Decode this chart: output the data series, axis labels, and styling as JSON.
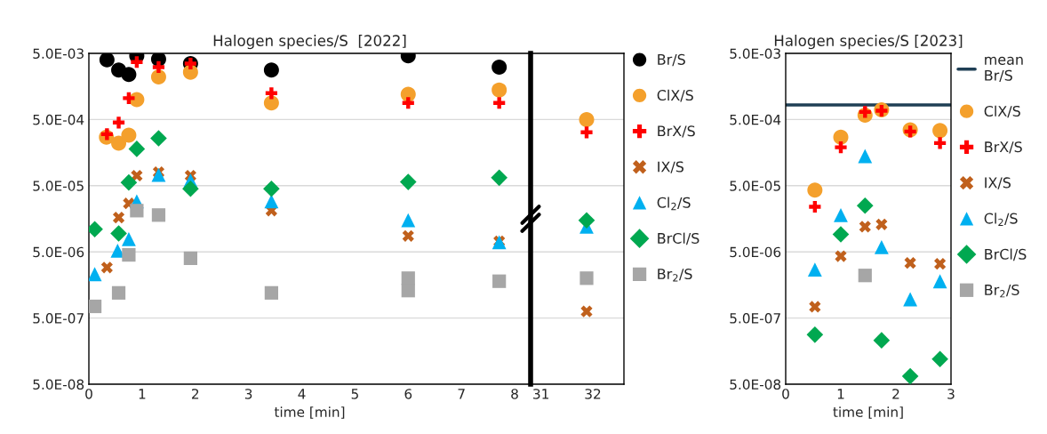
{
  "chart_data": [
    {
      "type": "scatter",
      "title": "Halogen species/S  [2022]",
      "xlabel": "time [min]",
      "log": "y",
      "grid": "y",
      "xlim": [
        0,
        8.3
      ],
      "xticks": [
        0,
        1,
        2,
        3,
        4,
        5,
        6,
        7,
        8
      ],
      "ylim": [
        5e-08,
        0.005
      ],
      "yticks": [
        {
          "value": 5e-08,
          "label": "5.0E-08"
        },
        {
          "value": 5e-07,
          "label": "5.0E-07"
        },
        {
          "value": 5e-06,
          "label": "5.0E-06"
        },
        {
          "value": 5e-05,
          "label": "5.0E-05"
        },
        {
          "value": 0.0005,
          "label": "5.0E-04"
        },
        {
          "value": 0.005,
          "label": "5.0E-03"
        }
      ],
      "series": [
        {
          "color": "#000000",
          "marker": "circle",
          "x": [
            0.34,
            0.56,
            0.75,
            0.9,
            1.31,
            1.91,
            3.43,
            6.0,
            7.71
          ],
          "values": [
            0.004,
            0.0028,
            0.0024,
            0.0046,
            0.0041,
            0.0035,
            0.0028,
            0.0046,
            0.0031
          ]
        },
        {
          "color": "#f4a02c",
          "marker": "circle",
          "x": [
            0.33,
            0.56,
            0.75,
            0.9,
            1.31,
            1.91,
            3.43,
            6.0,
            7.71
          ],
          "values": [
            0.00027,
            0.00022,
            0.00029,
            0.001,
            0.0022,
            0.0026,
            0.00089,
            0.0012,
            0.0014
          ]
        },
        {
          "color": "#ff0000",
          "marker": "plus",
          "x": [
            0.34,
            0.56,
            0.75,
            0.9,
            1.31,
            1.91,
            3.43,
            6.0,
            7.71
          ],
          "values": [
            0.0003,
            0.00045,
            0.00105,
            0.0037,
            0.0031,
            0.0035,
            0.00125,
            0.00089,
            0.00089
          ]
        },
        {
          "color": "#c0601c",
          "marker": "cross",
          "x": [
            0.34,
            0.56,
            0.75,
            0.9,
            1.31,
            1.91,
            3.43,
            6.0,
            7.71
          ],
          "values": [
            2.9e-06,
            1.65e-05,
            2.7e-05,
            7.1e-05,
            8e-05,
            7.1e-05,
            2.1e-05,
            8.7e-06,
            7.2e-06
          ]
        },
        {
          "color": "#00b0f0",
          "marker": "triangle",
          "x": [
            0.11,
            0.54,
            0.75,
            0.9,
            1.31,
            1.91,
            3.43,
            6.0,
            7.71
          ],
          "values": [
            2.3e-06,
            5.2e-06,
            7.8e-06,
            2.9e-05,
            7.3e-05,
            6e-05,
            2.9e-05,
            1.5e-05,
            7e-06
          ]
        },
        {
          "color": "#00a850",
          "marker": "diamond",
          "x": [
            0.11,
            0.56,
            0.75,
            0.9,
            1.31,
            1.91,
            3.43,
            6.0,
            7.71
          ],
          "values": [
            1.1e-05,
            9.5e-06,
            5.6e-05,
            0.00018,
            0.00026,
            4.5e-05,
            4.5e-05,
            5.7e-05,
            6.6e-05
          ]
        },
        {
          "color": "#a6a6a6",
          "marker": "square",
          "x": [
            0.11,
            0.56,
            0.75,
            0.9,
            1.31,
            1.91,
            3.43,
            6.0,
            6.0,
            7.71
          ],
          "values": [
            7.5e-07,
            1.2e-06,
            4.5e-06,
            2.1e-05,
            1.8e-05,
            4e-06,
            1.2e-06,
            2e-06,
            1.3e-06,
            1.8e-06
          ]
        }
      ]
    },
    {
      "type": "scatter",
      "log": "y",
      "grid": "y",
      "tick_labels": "x",
      "legend": "right",
      "xlim": [
        30.8,
        32.6
      ],
      "xticks": [
        31,
        32
      ],
      "ylim": [
        5e-08,
        0.005
      ],
      "yticks": [
        5e-08,
        5e-07,
        5e-06,
        5e-05,
        0.0005,
        0.005
      ],
      "series": [
        {
          "name": "Br/S",
          "color": "#000000",
          "marker": "circle"
        },
        {
          "name": "ClX/S",
          "color": "#f4a02c",
          "marker": "circle",
          "x": [
            31.88
          ],
          "values": [
            0.0005
          ]
        },
        {
          "name": "BrX/S",
          "color": "#ff0000",
          "marker": "plus",
          "x": [
            31.88
          ],
          "values": [
            0.00032
          ]
        },
        {
          "name": "IX/S",
          "color": "#c0601c",
          "marker": "cross",
          "x": [
            31.88
          ],
          "values": [
            6.3e-07
          ]
        },
        {
          "name": "Cl$_{2}$/S",
          "color": "#00b0f0",
          "marker": "triangle",
          "x": [
            31.88
          ],
          "values": [
            1.2e-05
          ]
        },
        {
          "name": "BrCl/S",
          "color": "#00a850",
          "marker": "diamond",
          "x": [
            31.88
          ],
          "values": [
            1.5e-05
          ]
        },
        {
          "name": "Br$_{2}$/S",
          "color": "#a6a6a6",
          "marker": "square",
          "x": [
            31.88
          ],
          "values": [
            2e-06
          ]
        }
      ]
    },
    {
      "type": "scatter",
      "title": "Halogen species/S [2023]",
      "xlabel": "time [min]",
      "log": "y",
      "grid": "y",
      "legend": "right",
      "xlim": [
        0,
        3
      ],
      "xticks": [
        0,
        1,
        2,
        3
      ],
      "ylim": [
        5e-08,
        0.005
      ],
      "yticks": [
        {
          "value": 5e-08,
          "label": "5.0E-08"
        },
        {
          "value": 5e-07,
          "label": "5.0E-07"
        },
        {
          "value": 5e-06,
          "label": "5.0E-06"
        },
        {
          "value": 5e-05,
          "label": "5.0E-05"
        },
        {
          "value": 0.0005,
          "label": "5.0E-04"
        },
        {
          "value": 0.005,
          "label": "5.0E-03"
        }
      ],
      "ref_lines": [
        {
          "axis": "y",
          "value": 0.00083,
          "label": "mean Br/S",
          "color": "#1f3f55"
        }
      ],
      "series": [
        {
          "name": "ClX/S",
          "color": "#f4a02c",
          "marker": "circle",
          "x": [
            0.53,
            1.0,
            1.44,
            1.74,
            2.26,
            2.8
          ],
          "values": [
            4.3e-05,
            0.00027,
            0.00058,
            0.0007,
            0.00035,
            0.00034
          ]
        },
        {
          "name": "BrX/S",
          "color": "#ff0000",
          "marker": "plus",
          "x": [
            0.53,
            1.0,
            1.44,
            1.74,
            2.26,
            2.8
          ],
          "values": [
            2.4e-05,
            0.00019,
            0.00065,
            0.00068,
            0.00033,
            0.00022
          ]
        },
        {
          "name": "IX/S",
          "color": "#c0601c",
          "marker": "cross",
          "x": [
            0.53,
            1.0,
            1.44,
            1.74,
            2.26,
            2.8
          ],
          "values": [
            7.4e-07,
            4.3e-06,
            1.2e-05,
            1.3e-05,
            3.4e-06,
            3.3e-06
          ]
        },
        {
          "name": "Cl$_{2}$/S",
          "color": "#00b0f0",
          "marker": "triangle",
          "x": [
            0.53,
            1.0,
            1.44,
            1.74,
            2.26,
            2.8
          ],
          "values": [
            2.7e-06,
            1.8e-05,
            0.00014,
            5.9e-06,
            9.6e-07,
            1.8e-06
          ]
        },
        {
          "name": "BrCl/S",
          "color": "#00a850",
          "marker": "diamond",
          "x": [
            0.53,
            1.0,
            1.44,
            1.74,
            2.26,
            2.8
          ],
          "values": [
            2.8e-07,
            9.2e-06,
            2.5e-05,
            2.3e-07,
            6.6e-08,
            1.2e-07
          ]
        },
        {
          "name": "Br$_{2}$/S",
          "color": "#a6a6a6",
          "marker": "square",
          "x": [
            1.44
          ],
          "values": [
            2.2e-06
          ]
        }
      ]
    }
  ]
}
